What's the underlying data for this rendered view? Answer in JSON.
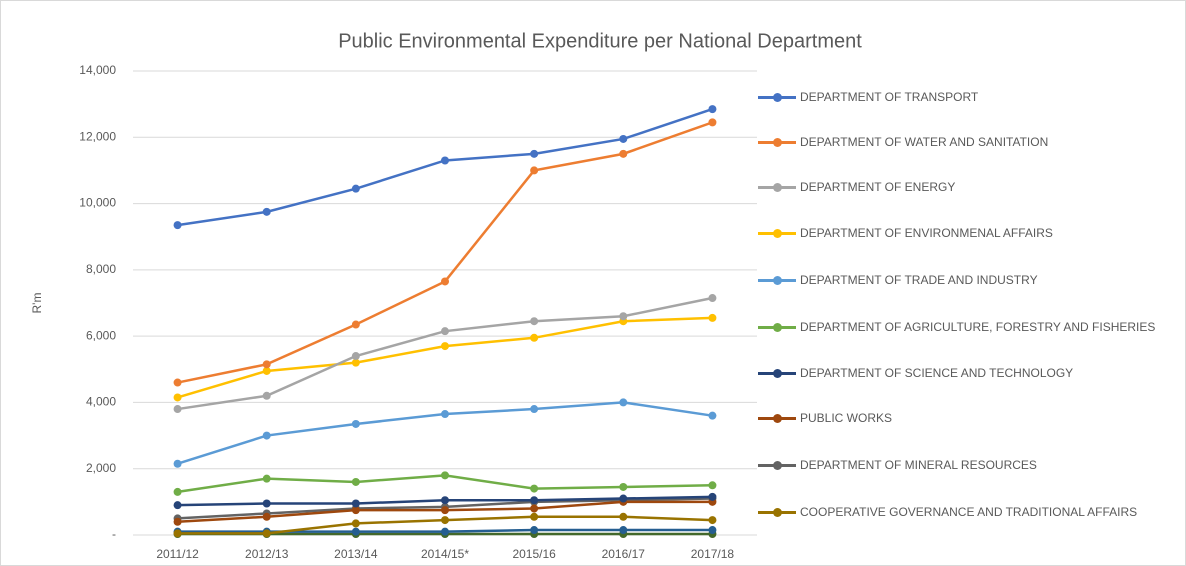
{
  "chart_data": {
    "type": "line",
    "title": "Public Environmental Expenditure per National Department",
    "ylabel": "R'm",
    "categories": [
      "2011/12",
      "2012/13",
      "2013/14",
      "2014/15*",
      "2015/16",
      "2016/17",
      "2017/18"
    ],
    "ylim": [
      0,
      14000
    ],
    "yticks": [
      {
        "value": 0,
        "label": "-"
      },
      {
        "value": 2000,
        "label": "2,000"
      },
      {
        "value": 4000,
        "label": "4,000"
      },
      {
        "value": 6000,
        "label": "6,000"
      },
      {
        "value": 8000,
        "label": "8,000"
      },
      {
        "value": 10000,
        "label": "10,000"
      },
      {
        "value": 12000,
        "label": "12,000"
      },
      {
        "value": 14000,
        "label": "14,000"
      }
    ],
    "grid": true,
    "legend": "right",
    "series": [
      {
        "name": "DEPARTMENT OF TRANSPORT",
        "color": "#4472c4",
        "values": [
          9350,
          9750,
          10450,
          11300,
          11500,
          11950,
          12850
        ]
      },
      {
        "name": "DEPARTMENT OF WATER AND SANITATION",
        "color": "#ed7d31",
        "values": [
          4600,
          5150,
          6350,
          7650,
          11000,
          11500,
          12450
        ]
      },
      {
        "name": "DEPARTMENT OF ENERGY",
        "color": "#a5a5a5",
        "values": [
          3800,
          4200,
          5400,
          6150,
          6450,
          6600,
          7150
        ]
      },
      {
        "name": "DEPARTMENT OF ENVIRONMENAL AFFAIRS",
        "color": "#ffc000",
        "values": [
          4150,
          4950,
          5200,
          5700,
          5950,
          6450,
          6550
        ]
      },
      {
        "name": "DEPARTMENT OF TRADE AND INDUSTRY",
        "color": "#5b9bd5",
        "values": [
          2150,
          3000,
          3350,
          3650,
          3800,
          4000,
          3600
        ]
      },
      {
        "name": "DEPARTMENT OF AGRICULTURE, FORESTRY AND FISHERIES",
        "color": "#70ad47",
        "values": [
          1300,
          1700,
          1600,
          1800,
          1400,
          1450,
          1500
        ]
      },
      {
        "name": "DEPARTMENT OF SCIENCE AND TECHNOLOGY",
        "color": "#264478",
        "values": [
          900,
          950,
          950,
          1050,
          1050,
          1100,
          1150
        ]
      },
      {
        "name": "PUBLIC WORKS",
        "color": "#9e480e",
        "values": [
          400,
          550,
          750,
          750,
          800,
          1000,
          1000
        ]
      },
      {
        "name": "DEPARTMENT OF MINERAL RESOURCES",
        "color": "#636363",
        "values": [
          500,
          650,
          800,
          850,
          1000,
          1050,
          1100
        ]
      },
      {
        "name": "COOPERATIVE GOVERNANCE AND TRADITIONAL AFFAIRS",
        "color": "#997300",
        "values": [
          50,
          50,
          350,
          450,
          550,
          550,
          450
        ]
      },
      {
        "color": "#255e91",
        "values": [
          100,
          100,
          100,
          100,
          150,
          150,
          150
        ]
      },
      {
        "color": "#43682b",
        "values": [
          30,
          30,
          30,
          30,
          30,
          30,
          30
        ]
      }
    ]
  }
}
